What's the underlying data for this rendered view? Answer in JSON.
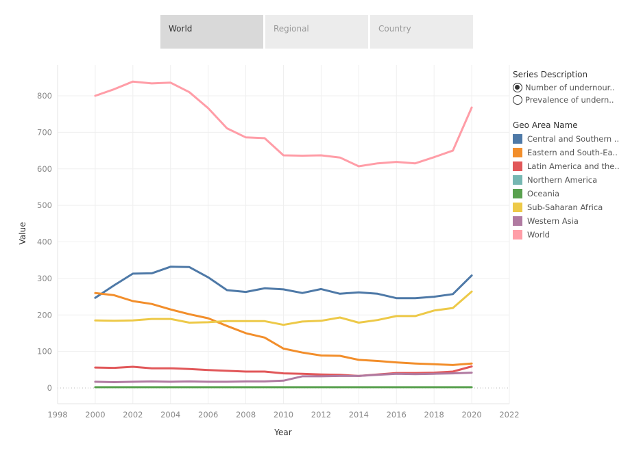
{
  "tabs": [
    {
      "label": "World",
      "active": true
    },
    {
      "label": "Regional",
      "active": false
    },
    {
      "label": "Country",
      "active": false
    }
  ],
  "series_description": {
    "title": "Series Description",
    "options": [
      {
        "label": "Number of undernour..",
        "selected": true
      },
      {
        "label": "Prevalence of undern..",
        "selected": false
      }
    ]
  },
  "geo_legend": {
    "title": "Geo Area Name",
    "items": [
      {
        "label": "Central and Southern ..",
        "color": "#4e79a7"
      },
      {
        "label": "Eastern and South-Ea..",
        "color": "#f28e2b"
      },
      {
        "label": "Latin America and the..",
        "color": "#e15759"
      },
      {
        "label": "Northern America",
        "color": "#76b7b2"
      },
      {
        "label": "Oceania",
        "color": "#59a14f"
      },
      {
        "label": "Sub-Saharan Africa",
        "color": "#edc948"
      },
      {
        "label": "Western Asia",
        "color": "#b07aa1"
      },
      {
        "label": "World",
        "color": "#ff9da7"
      }
    ]
  },
  "chart_data": {
    "type": "line",
    "title": "",
    "xlabel": "Year",
    "ylabel": "Value",
    "xlim": [
      1997,
      2023
    ],
    "ylim": [
      -45,
      885
    ],
    "xticks": [
      1998,
      2000,
      2002,
      2004,
      2006,
      2008,
      2010,
      2012,
      2014,
      2016,
      2018,
      2020,
      2022
    ],
    "yticks": [
      0,
      100,
      200,
      300,
      400,
      500,
      600,
      700,
      800
    ],
    "grid": true,
    "legend": "right",
    "x": [
      2000,
      2001,
      2002,
      2003,
      2004,
      2005,
      2006,
      2007,
      2008,
      2009,
      2010,
      2011,
      2012,
      2013,
      2014,
      2015,
      2016,
      2017,
      2018,
      2019,
      2020
    ],
    "series": [
      {
        "name": "World",
        "color": "#ff9da7",
        "values": [
          800,
          818,
          839,
          834,
          836,
          810,
          766,
          711,
          686,
          684,
          637,
          636,
          637,
          631,
          607,
          615,
          619,
          615,
          632,
          650,
          768
        ]
      },
      {
        "name": "Central and Southern Asia",
        "color": "#4e79a7",
        "values": [
          247,
          281,
          313,
          314,
          332,
          331,
          303,
          268,
          263,
          273,
          270,
          260,
          271,
          258,
          262,
          258,
          246,
          246,
          250,
          257,
          308
        ]
      },
      {
        "name": "Eastern and South-Eastern Asia",
        "color": "#f28e2b",
        "values": [
          260,
          254,
          238,
          230,
          215,
          202,
          191,
          170,
          150,
          138,
          108,
          97,
          89,
          88,
          77,
          74,
          70,
          67,
          65,
          63,
          67
        ]
      },
      {
        "name": "Sub-Saharan Africa",
        "color": "#edc948",
        "values": [
          185,
          184,
          185,
          189,
          189,
          179,
          180,
          183,
          183,
          183,
          173,
          182,
          184,
          193,
          179,
          186,
          197,
          197,
          212,
          219,
          264
        ]
      },
      {
        "name": "Latin America and the Caribbean",
        "color": "#e15759",
        "values": [
          56,
          55,
          58,
          54,
          54,
          52,
          49,
          47,
          45,
          45,
          40,
          39,
          37,
          36,
          33,
          37,
          41,
          41,
          42,
          45,
          59
        ]
      },
      {
        "name": "Western Asia",
        "color": "#b07aa1",
        "values": [
          17,
          16,
          17,
          18,
          17,
          18,
          17,
          17,
          18,
          18,
          20,
          32,
          32,
          33,
          33,
          36,
          39,
          38,
          39,
          40,
          42
        ]
      },
      {
        "name": "Oceania",
        "color": "#59a14f",
        "values": [
          2,
          2,
          2,
          2,
          2,
          2,
          2,
          2,
          2,
          2,
          2,
          2,
          2,
          2,
          2,
          2,
          2,
          2,
          2,
          2,
          2
        ]
      }
    ]
  }
}
